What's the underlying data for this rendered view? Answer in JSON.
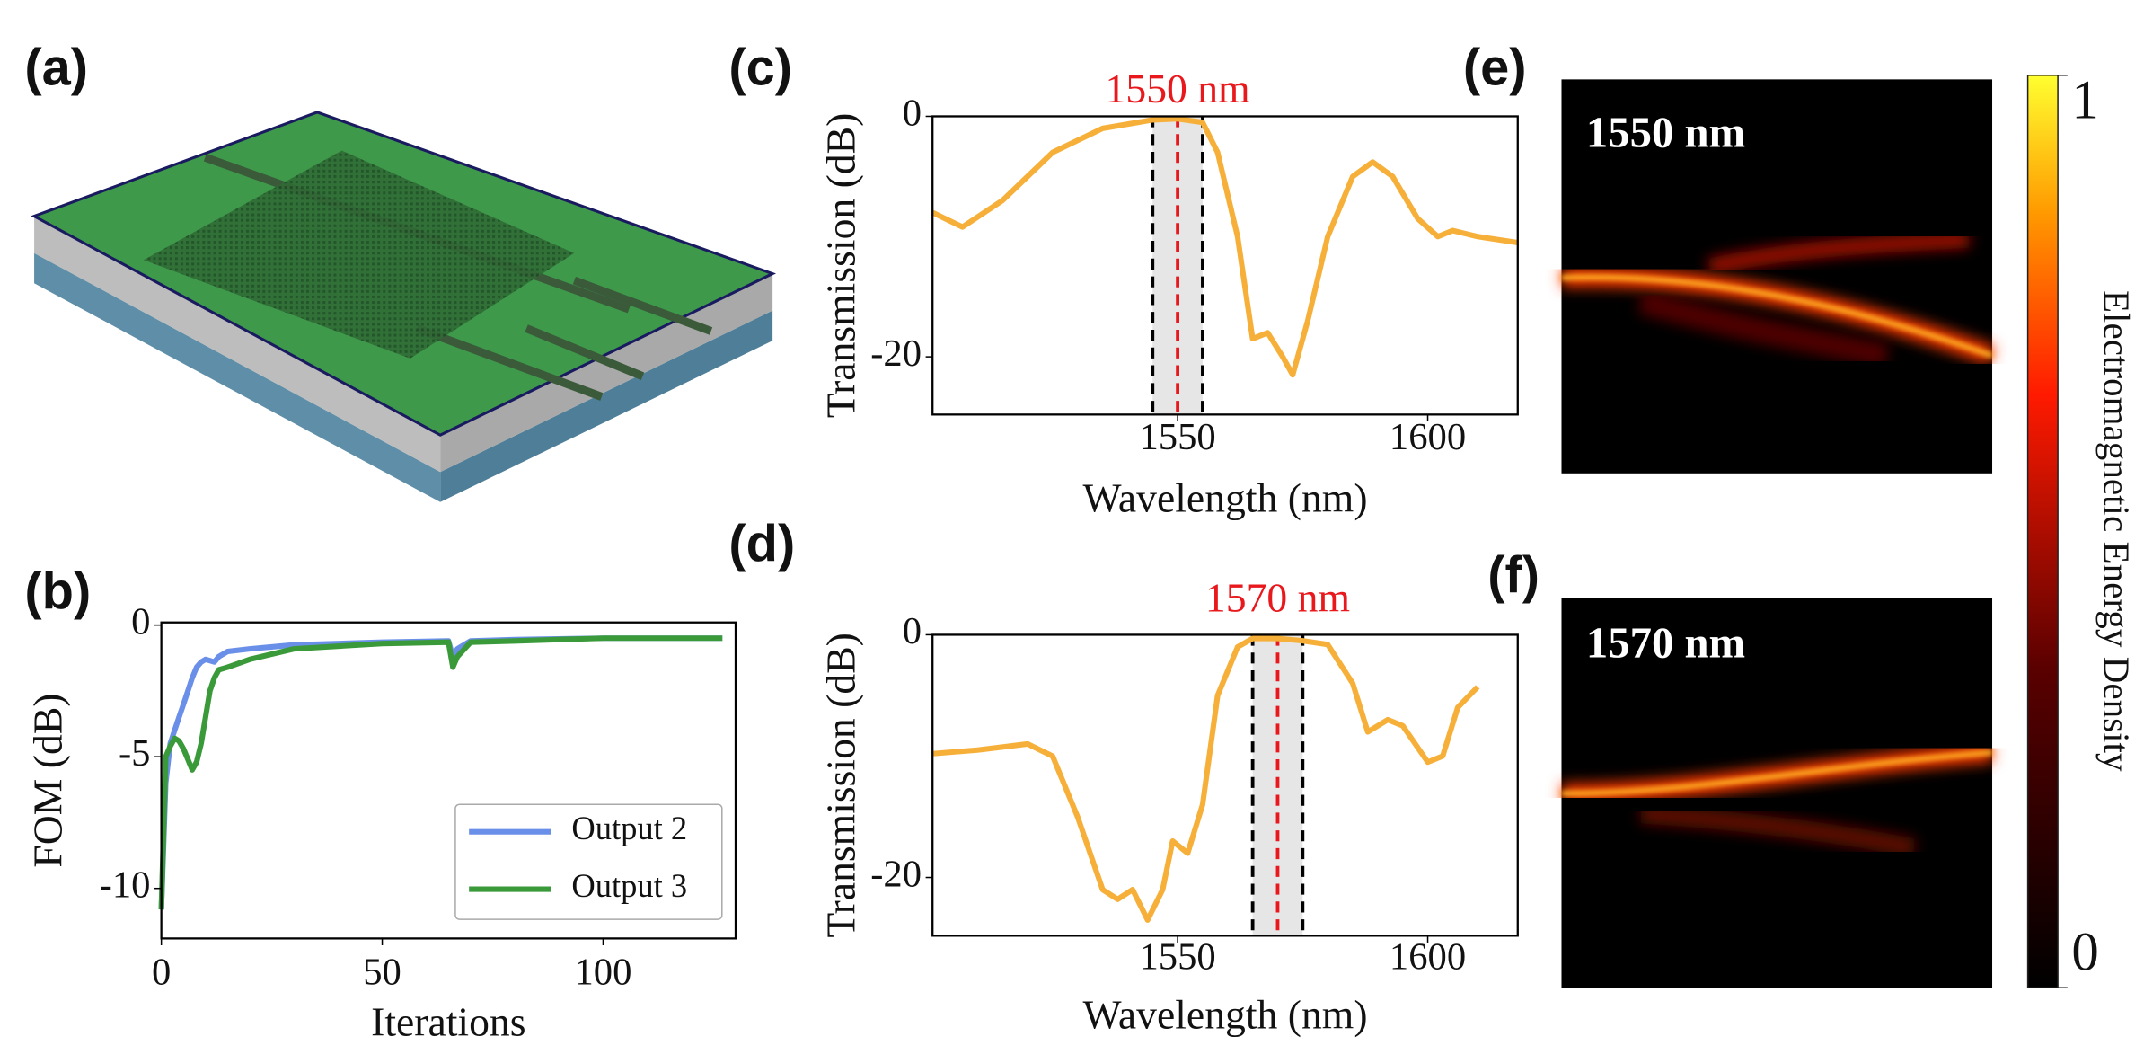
{
  "illustration": {
    "panel_label": "(a)"
  },
  "chart_data": [
    {
      "type": "line",
      "panel_label": "(b)",
      "xlabel": "Iterations",
      "ylabel": "FOM (dB)",
      "x": [
        0,
        1,
        2,
        3,
        4,
        5,
        6,
        7,
        8,
        9,
        10,
        11,
        12,
        13,
        15,
        20,
        30,
        50,
        65,
        66,
        67,
        70,
        80,
        100,
        127
      ],
      "series": [
        {
          "name": "Output 2",
          "color": "#6a8fe8",
          "values": [
            -10.8,
            -6,
            -4.5,
            -4,
            -3.5,
            -3,
            -2.5,
            -2,
            -1.6,
            -1.4,
            -1.3,
            -1.35,
            -1.4,
            -1.2,
            -1.0,
            -0.9,
            -0.75,
            -0.65,
            -0.6,
            -1.2,
            -0.9,
            -0.6,
            -0.55,
            -0.5,
            -0.5
          ]
        },
        {
          "name": "Output 3",
          "color": "#3a9a3a",
          "values": [
            -10.8,
            -5,
            -4.6,
            -4.3,
            -4.4,
            -4.7,
            -5.1,
            -5.5,
            -5.2,
            -4.5,
            -3.5,
            -2.5,
            -2.0,
            -1.7,
            -1.6,
            -1.3,
            -0.9,
            -0.7,
            -0.65,
            -1.6,
            -1.2,
            -0.65,
            -0.6,
            -0.5,
            -0.5
          ]
        }
      ],
      "xlim": [
        0,
        130
      ],
      "ylim": [
        -11.9,
        0.1
      ],
      "xticks": [
        0,
        50,
        100
      ],
      "yticks": [
        -10,
        -5,
        0
      ],
      "legend": "lower right"
    },
    {
      "type": "line",
      "panel_label": "(c)",
      "xlabel": "Wavelength (nm)",
      "ylabel": "Transmission (dB)",
      "color": "#f6b03a",
      "x": [
        1501,
        1507,
        1515,
        1525,
        1535,
        1545,
        1550,
        1555,
        1558,
        1562,
        1565,
        1568,
        1571,
        1573,
        1576,
        1580,
        1585,
        1589,
        1593,
        1598,
        1602,
        1605,
        1610,
        1618
      ],
      "values": [
        -8,
        -9.2,
        -7,
        -3,
        -1,
        -0.3,
        -0.2,
        -0.5,
        -3,
        -10,
        -18.5,
        -18,
        -20,
        -21.5,
        -17,
        -10,
        -5,
        -3.8,
        -5,
        -8.5,
        -10,
        -9.5,
        -10,
        -10.5
      ],
      "xlim": [
        1501,
        1618
      ],
      "ylim": [
        -24.8,
        0
      ],
      "xticks": [
        1550,
        1600
      ],
      "yticks": [
        -20,
        0
      ],
      "highlight": [
        1545,
        1555
      ],
      "center": 1550,
      "annotation": "1550 nm",
      "annotation_color": "#e8181c"
    },
    {
      "type": "line",
      "panel_label": "(d)",
      "xlabel": "Wavelength (nm)",
      "ylabel": "Transmission (dB)",
      "color": "#f6b03a",
      "x": [
        1501,
        1510,
        1520,
        1525,
        1530,
        1535,
        1538,
        1541,
        1544,
        1547,
        1549,
        1552,
        1555,
        1558,
        1562,
        1565,
        1570,
        1575,
        1580,
        1585,
        1588,
        1592,
        1595,
        1600,
        1603,
        1606,
        1610
      ],
      "values": [
        -9.8,
        -9.5,
        -9,
        -10,
        -15,
        -21,
        -21.8,
        -21,
        -23.5,
        -21,
        -17,
        -18,
        -14,
        -5,
        -1,
        -0.3,
        -0.3,
        -0.5,
        -0.8,
        -4,
        -8,
        -7,
        -7.5,
        -10.5,
        -10,
        -6,
        -4.3
      ],
      "xlim": [
        1501,
        1618
      ],
      "ylim": [
        -24.8,
        0
      ],
      "xticks": [
        1550,
        1600
      ],
      "yticks": [
        -20,
        0
      ],
      "highlight": [
        1565,
        1575
      ],
      "center": 1570,
      "annotation": "1570 nm",
      "annotation_color": "#e8181c"
    }
  ],
  "field_maps": [
    {
      "panel_label": "(e)",
      "label": "1550 nm"
    },
    {
      "panel_label": "(f)",
      "label": "1570 nm"
    }
  ],
  "colorbar": {
    "label": "Electromagnetic Energy Density",
    "lim": [
      0,
      1
    ],
    "ticks": [
      0,
      1
    ]
  }
}
